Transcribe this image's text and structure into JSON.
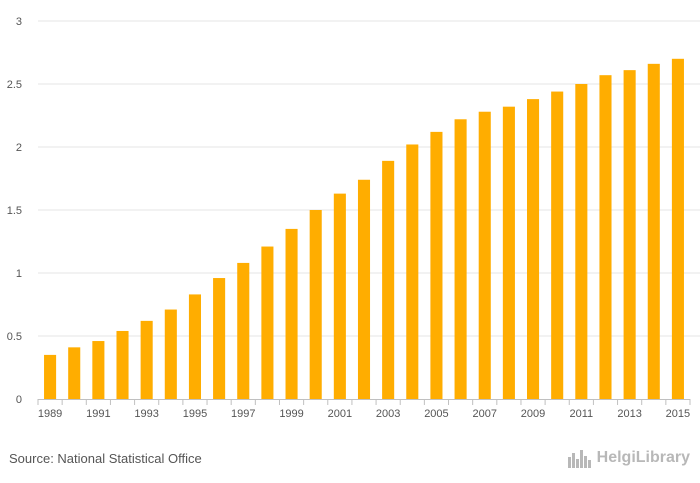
{
  "chart_data": {
    "type": "bar",
    "title": "",
    "xlabel": "",
    "ylabel": "",
    "ylim": [
      0,
      3
    ],
    "yticks": [
      0,
      0.5,
      1,
      1.5,
      2,
      2.5,
      3
    ],
    "ytick_labels": [
      "0",
      "0.5",
      "1",
      "1.5",
      "2",
      "2.5",
      "3"
    ],
    "categories": [
      "1989",
      "1990",
      "1991",
      "1992",
      "1993",
      "1994",
      "1995",
      "1996",
      "1997",
      "1998",
      "1999",
      "2000",
      "2001",
      "2002",
      "2003",
      "2004",
      "2005",
      "2006",
      "2007",
      "2008",
      "2009",
      "2010",
      "2011",
      "2012",
      "2013",
      "2014",
      "2015"
    ],
    "xtick_labels": [
      "1989",
      "1991",
      "1993",
      "1995",
      "1997",
      "1999",
      "2001",
      "2003",
      "2005",
      "2007",
      "2009",
      "2011",
      "2013",
      "2015"
    ],
    "values": [
      0.35,
      0.41,
      0.46,
      0.54,
      0.62,
      0.71,
      0.83,
      0.96,
      1.08,
      1.21,
      1.35,
      1.5,
      1.63,
      1.74,
      1.89,
      2.02,
      2.12,
      2.22,
      2.28,
      2.32,
      2.38,
      2.44,
      2.5,
      2.57,
      2.61,
      2.66,
      2.7
    ],
    "bar_color": "#ffad00",
    "grid": true
  },
  "footer": {
    "source": "Source: National Statistical Office",
    "brand": "HelgiLibrary"
  },
  "colors": {
    "grid": "#e6e6e6",
    "axis": "#c0c0c0",
    "text": "#555555",
    "brand": "#b8b8b8"
  }
}
